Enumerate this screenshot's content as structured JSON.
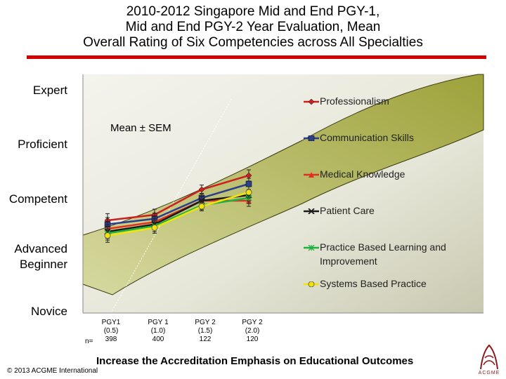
{
  "title": {
    "line1": "2010-2012 Singapore Mid and End PGY-1,",
    "line2": "Mid and End PGY-2 Year Evaluation, Mean",
    "line3": "Overall Rating of Six Competencies across All Specialties"
  },
  "colors": {
    "accent_rule": "#d40000",
    "band_fill": "#a9b042",
    "band_stroke": "#3a3a10"
  },
  "mean_note": "Mean ± SEM",
  "footer": "Increase the Accreditation Emphasis on Educational Outcomes",
  "copyright": "© 2013 ACGME International",
  "logo": {
    "icon": "acgme-logo-icon",
    "text": "ACGME"
  },
  "chart_data": {
    "type": "line",
    "y_levels": [
      "Novice",
      "Advanced Beginner",
      "Competent",
      "Proficient",
      "Expert"
    ],
    "ylim": [
      1,
      5
    ],
    "categories": [
      {
        "label": "PGY1",
        "period": "(0.5)",
        "n": "398"
      },
      {
        "label": "PGY 1",
        "period": "(1.0)",
        "n": "400"
      },
      {
        "label": "PGY 2",
        "period": "(1.5)",
        "n": "122"
      },
      {
        "label": "PGY 2",
        "period": "(2.0)",
        "n": "120"
      }
    ],
    "n_prefix": "n=",
    "series": [
      {
        "name": "Professionalism",
        "color": "#cc2020",
        "marker": "diamond",
        "values": [
          2.65,
          2.75,
          3.2,
          3.45
        ],
        "sem": [
          0.12,
          0.1,
          0.08,
          0.1
        ]
      },
      {
        "name": "Communication Skills",
        "color": "#2d3e8c",
        "marker": "square",
        "values": [
          2.58,
          2.68,
          3.05,
          3.3
        ],
        "sem": [
          0.12,
          0.1,
          0.08,
          0.1
        ]
      },
      {
        "name": "Medical Knowledge",
        "color": "#e03020",
        "marker": "triangle",
        "values": [
          2.5,
          2.62,
          3.0,
          3.0
        ],
        "sem": [
          0.12,
          0.1,
          0.08,
          0.1
        ]
      },
      {
        "name": "Patient Care",
        "color": "#1a1a1a",
        "marker": "x",
        "values": [
          2.45,
          2.58,
          3.0,
          3.1
        ],
        "sem": [
          0.12,
          0.1,
          0.08,
          0.1
        ]
      },
      {
        "name": "Practice Based Learning and Improvement",
        "color": "#20b040",
        "marker": "star",
        "values": [
          2.42,
          2.55,
          2.92,
          3.05
        ],
        "sem": [
          0.12,
          0.1,
          0.08,
          0.1
        ]
      },
      {
        "name": "Systems Based Practice",
        "color": "#f2e40a",
        "marker": "circle",
        "values": [
          2.38,
          2.52,
          2.9,
          3.15
        ],
        "sem": [
          0.12,
          0.1,
          0.08,
          0.1
        ]
      }
    ],
    "grid": false,
    "legend_position": "right"
  }
}
